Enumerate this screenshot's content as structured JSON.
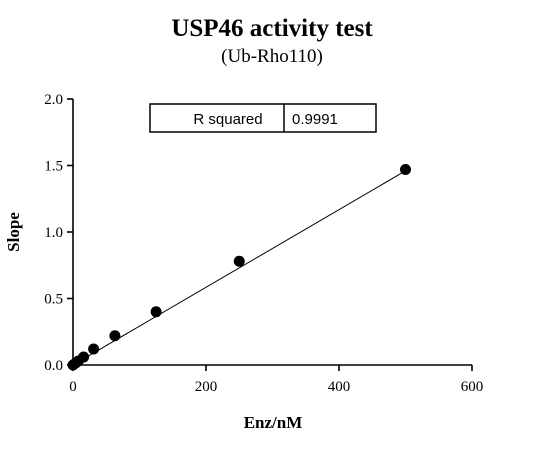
{
  "chart_data": {
    "type": "scatter",
    "title": "USP46 activity test",
    "subtitle": "(Ub-Rho110)",
    "xlabel": "Enz/nM",
    "ylabel": "Slope",
    "xlim": [
      0,
      600
    ],
    "ylim": [
      0,
      2.0
    ],
    "x_ticks": [
      "0",
      "200",
      "400",
      "600"
    ],
    "y_ticks": [
      "0.0",
      "0.5",
      "1.0",
      "1.5",
      "2.0"
    ],
    "points": [
      {
        "x": 0,
        "y": 0.0
      },
      {
        "x": 4,
        "y": 0.015
      },
      {
        "x": 8,
        "y": 0.03
      },
      {
        "x": 16,
        "y": 0.06
      },
      {
        "x": 31,
        "y": 0.12
      },
      {
        "x": 63,
        "y": 0.22
      },
      {
        "x": 125,
        "y": 0.4
      },
      {
        "x": 250,
        "y": 0.78
      },
      {
        "x": 500,
        "y": 1.47
      }
    ],
    "fit_line": {
      "x": [
        0,
        500
      ],
      "y": [
        0.0,
        1.46
      ]
    },
    "grid": false,
    "legend": "none",
    "stats_table": {
      "label": "R squared",
      "value": "0.9991",
      "placement": "top-center"
    }
  }
}
